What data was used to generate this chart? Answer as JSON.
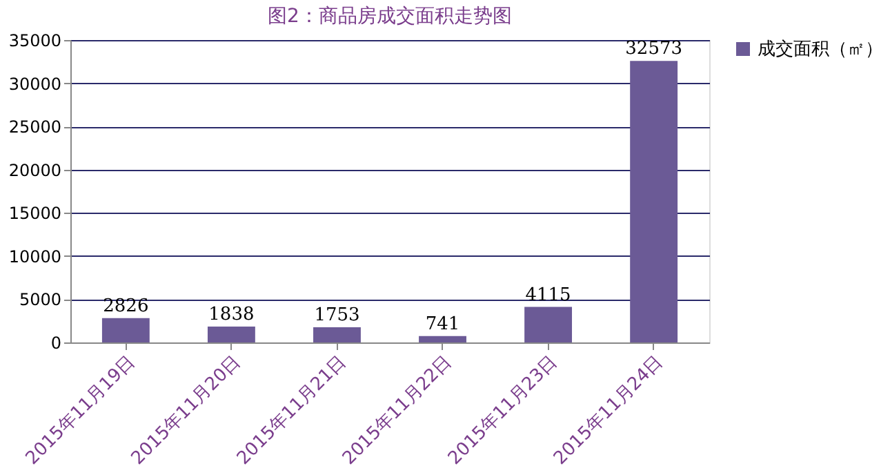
{
  "chart_data": {
    "type": "bar",
    "title": "图2：商品房成交面积走势图",
    "categories": [
      "2015年11月19日",
      "2015年11月20日",
      "2015年11月21日",
      "2015年11月22日",
      "2015年11月23日",
      "2015年11月24日"
    ],
    "series": [
      {
        "name": "成交面积（㎡）",
        "color": "#6b5a96",
        "values": [
          2826,
          1838,
          1753,
          741,
          4115,
          32573
        ]
      }
    ],
    "ylim": [
      0,
      35000
    ],
    "yticks": [
      0,
      5000,
      10000,
      15000,
      20000,
      25000,
      30000,
      35000
    ],
    "grid": "y",
    "legend": "right",
    "data_labels": true
  }
}
